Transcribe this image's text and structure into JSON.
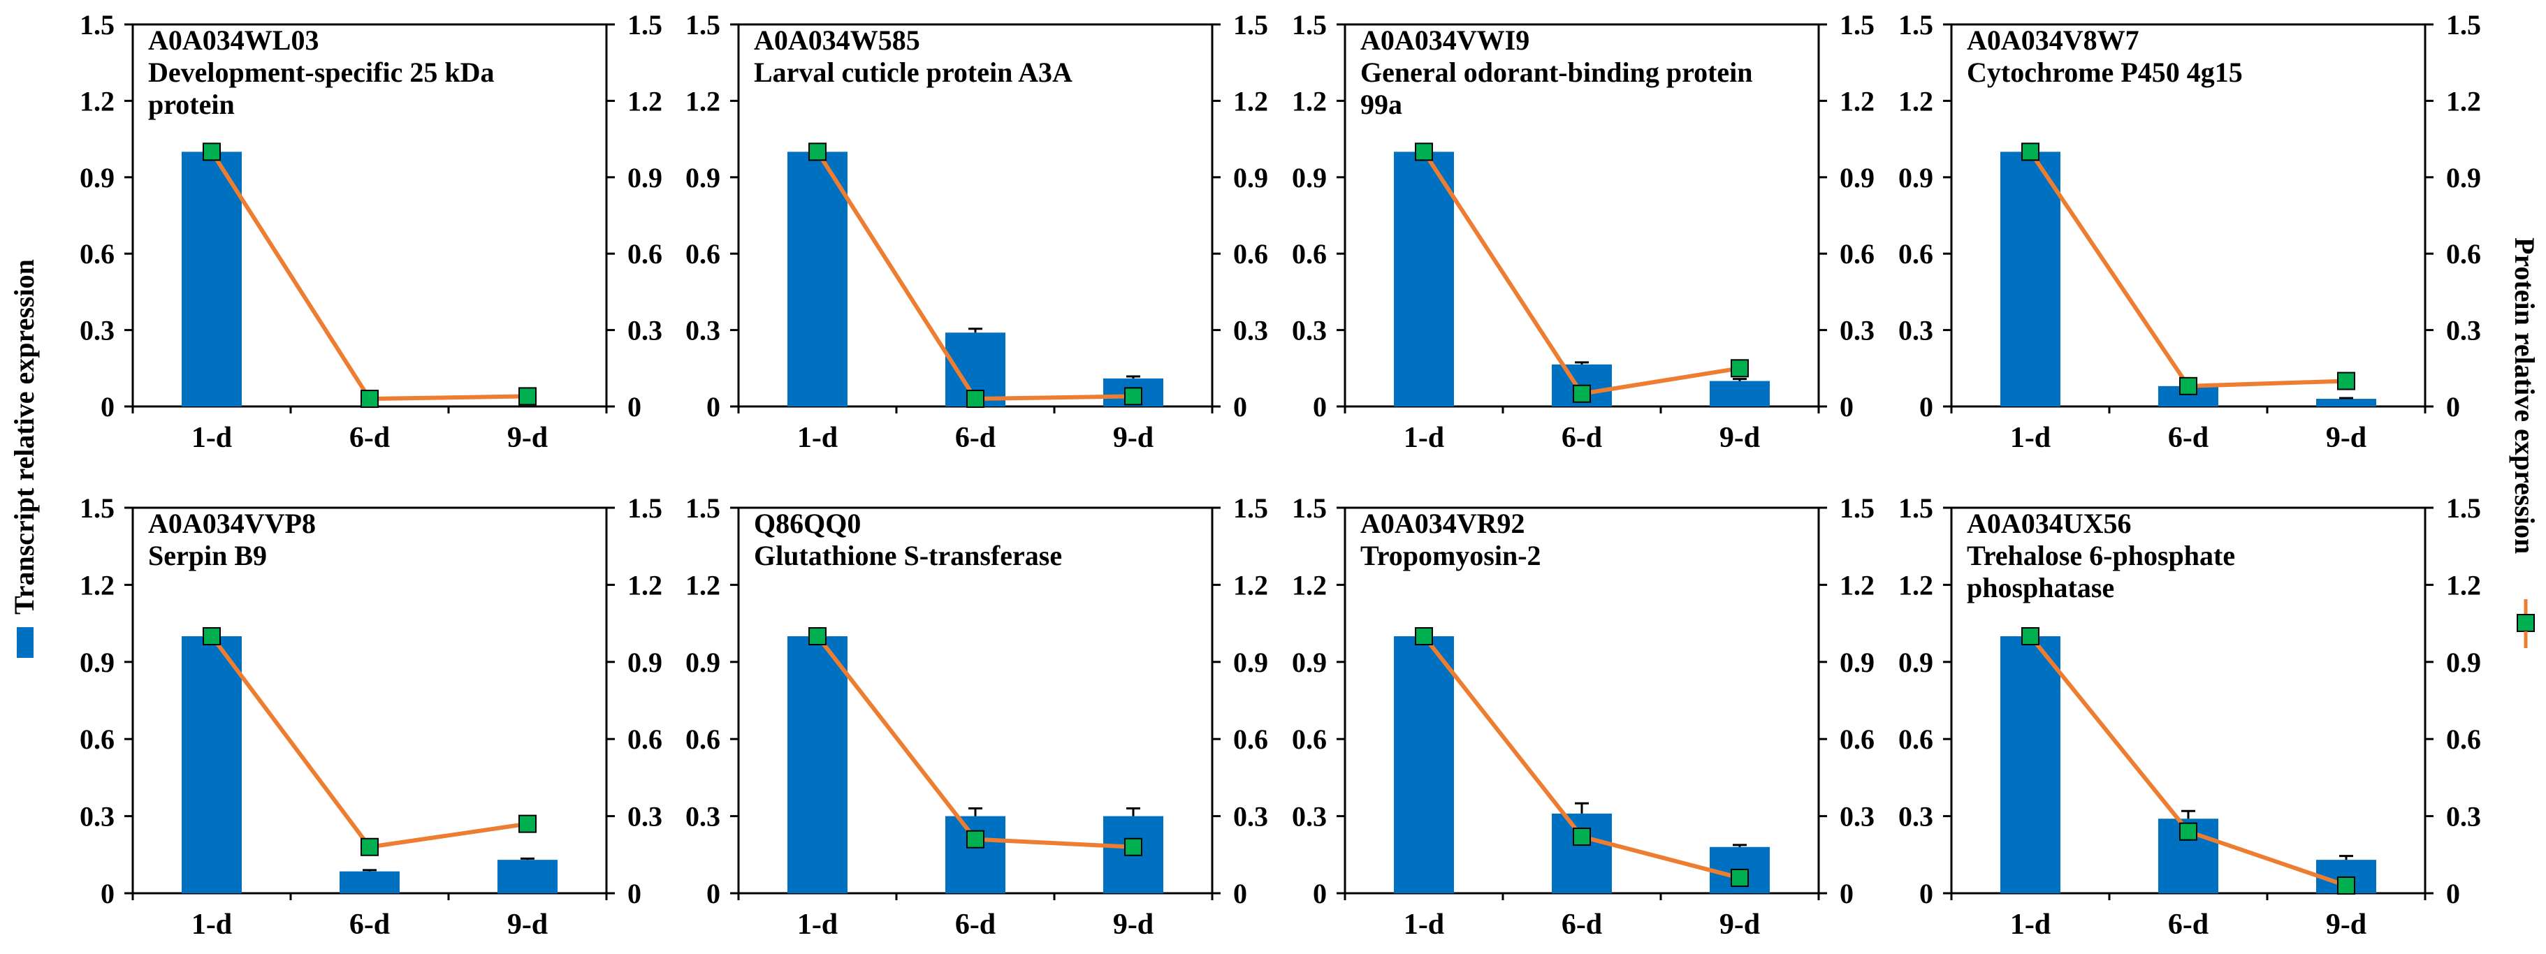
{
  "colors": {
    "bar": "#0070C0",
    "line": "#ED7D31",
    "marker": "#00B050",
    "axis": "#000000"
  },
  "legend": {
    "left_label": "Transcript relative expression",
    "right_label": "Protein relative expression"
  },
  "chart_data": [
    {
      "type": "bar+line",
      "id": "A0A034WL03",
      "title_lines": [
        "A0A034WL03",
        "Development-specific 25 kDa",
        "protein"
      ],
      "categories": [
        "1-d",
        "6-d",
        "9-d"
      ],
      "bar_values": [
        1.0,
        0.0,
        0.0
      ],
      "bar_errors": [
        0,
        0,
        0
      ],
      "line_values": [
        1.0,
        0.03,
        0.04
      ],
      "ylim": [
        0,
        1.5
      ],
      "yticks": [
        "0",
        "0.3",
        "0.6",
        "0.9",
        "1.2",
        "1.5"
      ],
      "y2lim": [
        0,
        1.5
      ],
      "y2ticks": [
        "0",
        "0.3",
        "0.6",
        "0.9",
        "1.2",
        "1.5"
      ]
    },
    {
      "type": "bar+line",
      "id": "A0A034W585",
      "title_lines": [
        "A0A034W585",
        "Larval cuticle protein A3A"
      ],
      "categories": [
        "1-d",
        "6-d",
        "9-d"
      ],
      "bar_values": [
        1.0,
        0.29,
        0.11
      ],
      "bar_errors": [
        0,
        0.015,
        0.008
      ],
      "line_values": [
        1.0,
        0.03,
        0.04
      ],
      "ylim": [
        0,
        1.5
      ],
      "yticks": [
        "0",
        "0.3",
        "0.6",
        "0.9",
        "1.2",
        "1.5"
      ],
      "y2lim": [
        0,
        1.5
      ],
      "y2ticks": [
        "0",
        "0.3",
        "0.6",
        "0.9",
        "1.2",
        "1.5"
      ]
    },
    {
      "type": "bar+line",
      "id": "A0A034VWI9",
      "title_lines": [
        "A0A034VWI9",
        "General odorant-binding protein",
        "99a"
      ],
      "categories": [
        "1-d",
        "6-d",
        "9-d"
      ],
      "bar_values": [
        1.0,
        0.165,
        0.1
      ],
      "bar_errors": [
        0,
        0.008,
        0.008
      ],
      "line_values": [
        1.0,
        0.05,
        0.15
      ],
      "ylim": [
        0,
        1.5
      ],
      "yticks": [
        "0",
        "0.3",
        "0.6",
        "0.9",
        "1.2",
        "1.5"
      ],
      "y2lim": [
        0,
        1.5
      ],
      "y2ticks": [
        "0",
        "0.3",
        "0.6",
        "0.9",
        "1.2",
        "1.5"
      ]
    },
    {
      "type": "bar+line",
      "id": "A0A034V8W7",
      "title_lines": [
        "A0A034V8W7",
        "Cytochrome P450 4g15"
      ],
      "categories": [
        "1-d",
        "6-d",
        "9-d"
      ],
      "bar_values": [
        1.0,
        0.08,
        0.03
      ],
      "bar_errors": [
        0,
        0.005,
        0.003
      ],
      "line_values": [
        1.0,
        0.08,
        0.1
      ],
      "ylim": [
        0,
        1.5
      ],
      "yticks": [
        "0",
        "0.3",
        "0.6",
        "0.9",
        "1.2",
        "1.5"
      ],
      "y2lim": [
        0,
        1.5
      ],
      "y2ticks": [
        "0",
        "0.3",
        "0.6",
        "0.9",
        "1.2",
        "1.5"
      ]
    },
    {
      "type": "bar+line",
      "id": "A0A034VVP8",
      "title_lines": [
        "A0A034VVP8",
        "Serpin B9"
      ],
      "categories": [
        "1-d",
        "6-d",
        "9-d"
      ],
      "bar_values": [
        1.0,
        0.085,
        0.13
      ],
      "bar_errors": [
        0,
        0.005,
        0.005
      ],
      "line_values": [
        1.0,
        0.18,
        0.27
      ],
      "ylim": [
        0,
        1.5
      ],
      "yticks": [
        "0",
        "0.3",
        "0.6",
        "0.9",
        "1.2",
        "1.5"
      ],
      "y2lim": [
        0,
        1.5
      ],
      "y2ticks": [
        "0",
        "0.3",
        "0.6",
        "0.9",
        "1.2",
        "1.5"
      ]
    },
    {
      "type": "bar+line",
      "id": "Q86QQ0",
      "title_lines": [
        "Q86QQ0",
        "Glutathione S-transferase"
      ],
      "categories": [
        "1-d",
        "6-d",
        "9-d"
      ],
      "bar_values": [
        1.0,
        0.3,
        0.3
      ],
      "bar_errors": [
        0,
        0.03,
        0.03
      ],
      "line_values": [
        1.0,
        0.21,
        0.18
      ],
      "ylim": [
        0,
        1.5
      ],
      "yticks": [
        "0",
        "0.3",
        "0.6",
        "0.9",
        "1.2",
        "1.5"
      ],
      "y2lim": [
        0,
        1.5
      ],
      "y2ticks": [
        "0",
        "0.3",
        "0.6",
        "0.9",
        "1.2",
        "1.5"
      ]
    },
    {
      "type": "bar+line",
      "id": "A0A034VR92",
      "title_lines": [
        "A0A034VR92",
        "Tropomyosin-2"
      ],
      "categories": [
        "1-d",
        "6-d",
        "9-d"
      ],
      "bar_values": [
        1.0,
        0.31,
        0.18
      ],
      "bar_errors": [
        0,
        0.04,
        0.008
      ],
      "line_values": [
        1.0,
        0.22,
        0.06
      ],
      "ylim": [
        0,
        1.5
      ],
      "yticks": [
        "0",
        "0.3",
        "0.6",
        "0.9",
        "1.2",
        "1.5"
      ],
      "y2lim": [
        0,
        1.5
      ],
      "y2ticks": [
        "0",
        "0.3",
        "0.6",
        "0.9",
        "1.2",
        "1.5"
      ]
    },
    {
      "type": "bar+line",
      "id": "A0A034UX56",
      "title_lines": [
        "A0A034UX56",
        "Trehalose 6-phosphate",
        "phosphatase"
      ],
      "categories": [
        "1-d",
        "6-d",
        "9-d"
      ],
      "bar_values": [
        1.0,
        0.29,
        0.13
      ],
      "bar_errors": [
        0,
        0.03,
        0.015
      ],
      "line_values": [
        1.0,
        0.24,
        0.03
      ],
      "ylim": [
        0,
        1.5
      ],
      "yticks": [
        "0",
        "0.3",
        "0.6",
        "0.9",
        "1.2",
        "1.5"
      ],
      "y2lim": [
        0,
        1.5
      ],
      "y2ticks": [
        "0",
        "0.3",
        "0.6",
        "0.9",
        "1.2",
        "1.5"
      ]
    }
  ]
}
